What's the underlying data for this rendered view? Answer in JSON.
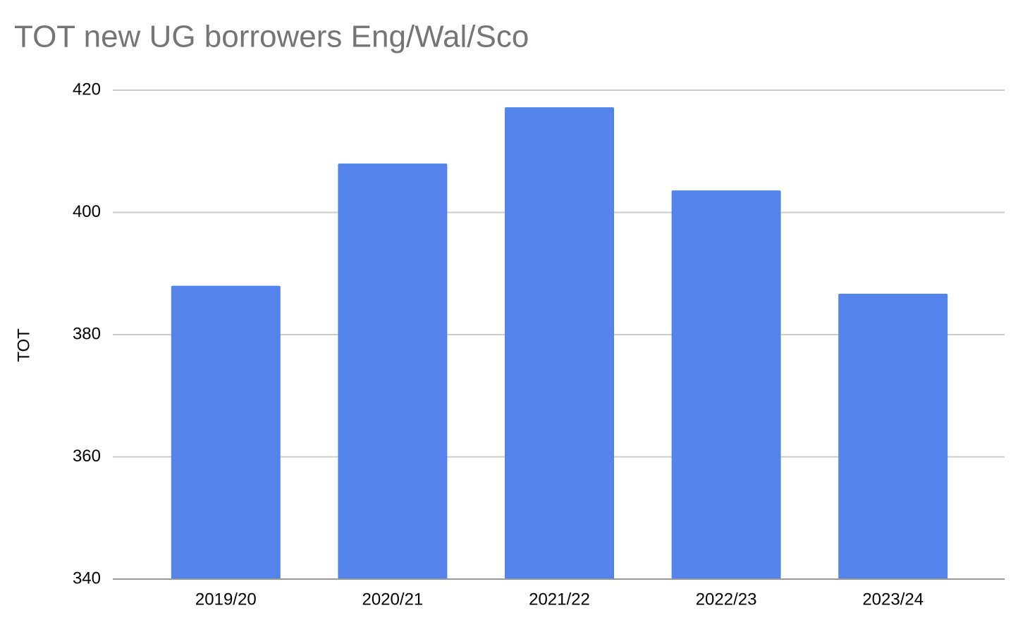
{
  "chart_data": {
    "type": "bar",
    "title": "TOT new UG borrowers Eng/Wal/Sco",
    "y_label": "TOT",
    "categories": [
      "2019/20",
      "2020/21",
      "2021/22",
      "2022/23",
      "2023/24"
    ],
    "values": [
      388,
      408,
      417.2,
      403.6,
      386.7
    ],
    "color": "#5484eb",
    "ylim": [
      340,
      420
    ],
    "yticks": [
      340,
      360,
      380,
      400,
      420
    ],
    "grid": true
  }
}
